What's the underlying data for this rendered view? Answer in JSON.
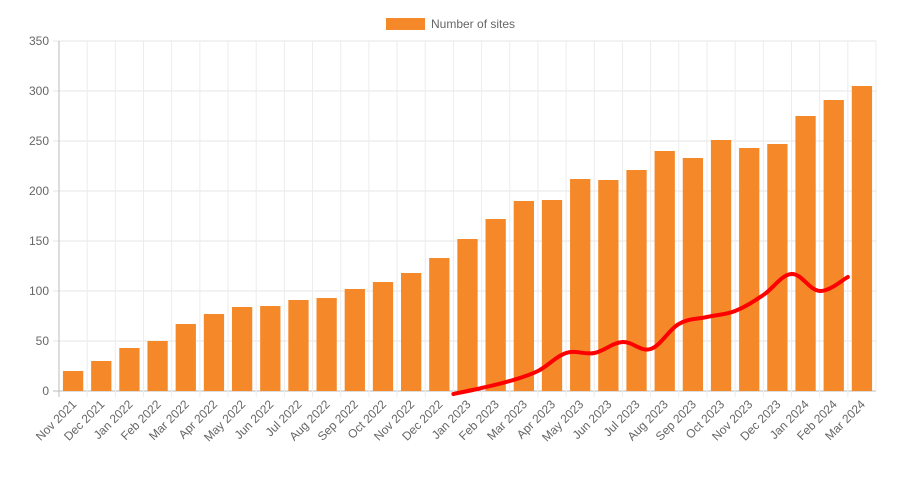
{
  "chart_data": {
    "type": "bar",
    "title": "",
    "xlabel": "",
    "ylabel": "",
    "ylim": [
      0,
      350
    ],
    "yticks": [
      0,
      50,
      100,
      150,
      200,
      250,
      300,
      350
    ],
    "grid": true,
    "legend_position": "top-center",
    "categories": [
      "Nov 2021",
      "Dec 2021",
      "Jan 2022",
      "Feb 2022",
      "Mar 2022",
      "Apr 2022",
      "May 2022",
      "Jun 2022",
      "Jul 2022",
      "Aug 2022",
      "Sep 2022",
      "Oct 2022",
      "Nov 2022",
      "Dec 2022",
      "Jan 2023",
      "Feb 2023",
      "Mar 2023",
      "Apr 2023",
      "May 2023",
      "Jun 2023",
      "Jul 2023",
      "Aug 2023",
      "Sep 2023",
      "Oct 2023",
      "Nov 2023",
      "Dec 2023",
      "Jan 2024",
      "Feb 2024",
      "Mar 2024"
    ],
    "series": [
      {
        "name": "Number of sites",
        "type": "bar",
        "color": "#f5892a",
        "values": [
          20,
          30,
          43,
          50,
          67,
          77,
          84,
          85,
          91,
          93,
          102,
          109,
          118,
          133,
          152,
          172,
          190,
          191,
          212,
          211,
          221,
          240,
          233,
          251,
          243,
          247,
          275,
          291,
          305
        ]
      }
    ],
    "overlay_line": {
      "color": "#ff0000",
      "start_category": "Jan 2023",
      "values": [
        -3,
        3,
        10,
        20,
        38,
        38,
        49,
        42,
        67,
        74,
        80,
        96,
        117,
        100,
        114
      ]
    }
  }
}
